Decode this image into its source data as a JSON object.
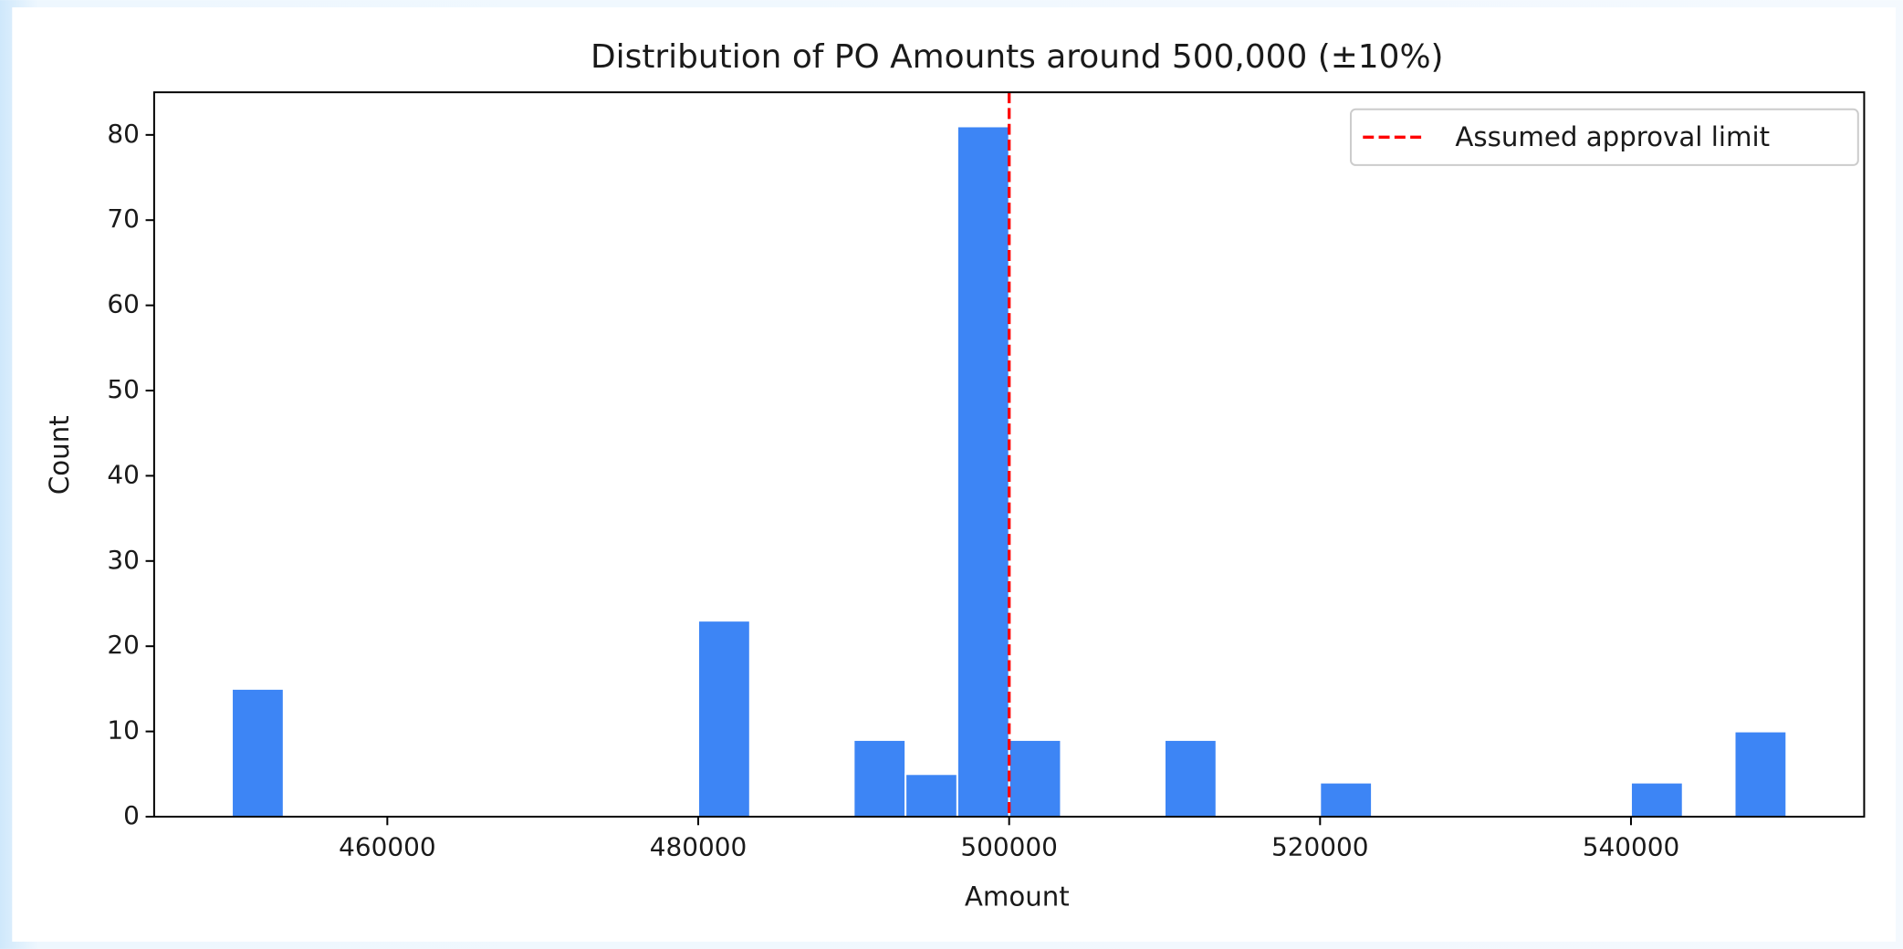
{
  "chart_data": {
    "type": "histogram",
    "title": "Distribution of PO Amounts around 500,000 (±10%)",
    "x_label": "Amount",
    "y_label": "Count",
    "bins": [
      450000,
      453333.33,
      456666.67,
      460000,
      463333.33,
      466666.67,
      470000,
      473333.33,
      476666.67,
      480000,
      483333.33,
      486666.67,
      490000,
      493333.33,
      496666.67,
      500000,
      503333.33,
      506666.67,
      510000,
      513333.33,
      516666.67,
      520000,
      523333.33,
      526666.67,
      530000,
      533333.33,
      536666.67,
      540000,
      543333.33,
      546666.67,
      550000
    ],
    "counts": [
      15,
      0,
      0,
      0,
      0,
      0,
      0,
      0,
      0,
      23,
      0,
      0,
      9,
      5,
      81,
      9,
      0,
      0,
      9,
      0,
      0,
      4,
      0,
      0,
      0,
      0,
      0,
      4,
      0,
      10
    ],
    "color": "#3d85f5",
    "xlim": [
      445000,
      555000
    ],
    "xticks": [
      460000,
      480000,
      500000,
      520000,
      540000
    ],
    "ylim": [
      0,
      85
    ],
    "yticks": [
      0,
      10,
      20,
      30,
      40,
      50,
      60,
      70,
      80
    ],
    "vline": {
      "x": 500000,
      "label": "Assumed approval limit",
      "color": "#ff0000"
    },
    "legend": "upper right"
  }
}
